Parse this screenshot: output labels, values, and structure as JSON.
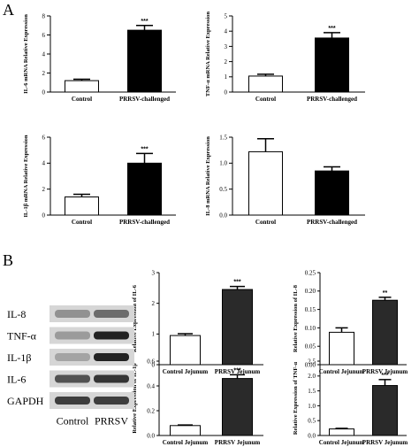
{
  "panels": {
    "A": "A",
    "B": "B"
  },
  "blot": {
    "rows": [
      {
        "label": "IL-8",
        "bands": [
          0.35,
          0.55
        ]
      },
      {
        "label": "TNF-α",
        "bands": [
          0.3,
          0.95
        ]
      },
      {
        "label": "IL-1β",
        "bands": [
          0.25,
          0.95
        ]
      },
      {
        "label": "IL-6",
        "bands": [
          0.7,
          0.85
        ]
      },
      {
        "label": "GAPDH",
        "bands": [
          0.8,
          0.8
        ]
      }
    ],
    "lanes": [
      "Control",
      "PRRSV"
    ]
  },
  "chart_data": [
    {
      "type": "bar",
      "id": "a1",
      "categories": [
        "Control",
        "PRRSV-challenged"
      ],
      "values": [
        1.2,
        6.5
      ],
      "errors": [
        0.15,
        0.5
      ],
      "ylabel": "IL-6 mRNA Relative Expression",
      "ylim": [
        0,
        8
      ],
      "yticks": [
        0,
        2,
        4,
        6,
        8
      ],
      "fills": [
        "#ffffff",
        "#000000"
      ],
      "sig": [
        "",
        "***"
      ]
    },
    {
      "type": "bar",
      "id": "a2",
      "categories": [
        "Control",
        "PRRSV-challenged"
      ],
      "values": [
        1.05,
        3.55
      ],
      "errors": [
        0.12,
        0.35
      ],
      "ylabel": "TNF-α mRNA Relative Expression",
      "ylim": [
        0,
        5
      ],
      "yticks": [
        0,
        1,
        2,
        3,
        4,
        5
      ],
      "fills": [
        "#ffffff",
        "#000000"
      ],
      "sig": [
        "",
        "***"
      ]
    },
    {
      "type": "bar",
      "id": "a3",
      "categories": [
        "Control",
        "PRRSV-challenged"
      ],
      "values": [
        1.4,
        4.0
      ],
      "errors": [
        0.2,
        0.75
      ],
      "ylabel": "IL-1β mRNA Relative Expression",
      "ylim": [
        0,
        6
      ],
      "yticks": [
        0,
        2,
        4,
        6
      ],
      "fills": [
        "#ffffff",
        "#000000"
      ],
      "sig": [
        "",
        "***"
      ]
    },
    {
      "type": "bar",
      "id": "a4",
      "categories": [
        "Control",
        "PRRSV-challenged"
      ],
      "values": [
        1.22,
        0.85
      ],
      "errors": [
        0.25,
        0.08
      ],
      "ylabel": "IL-8 mRNA Relative Expression",
      "ylim": [
        0,
        1.5
      ],
      "yticks": [
        0.0,
        0.5,
        1.0,
        1.5
      ],
      "fills": [
        "#ffffff",
        "#000000"
      ],
      "sig": [
        "",
        ""
      ]
    },
    {
      "type": "bar",
      "id": "b1",
      "categories": [
        "Control Jejunum",
        "PRRSV Jejunum"
      ],
      "values": [
        0.95,
        2.45
      ],
      "errors": [
        0.06,
        0.1
      ],
      "ylabel": "Relative Expression of IL-6",
      "ylim": [
        0,
        3
      ],
      "yticks": [
        0,
        1,
        2,
        3
      ],
      "fills": [
        "#ffffff",
        "#2a2a2a"
      ],
      "sig": [
        "",
        "***"
      ]
    },
    {
      "type": "bar",
      "id": "b2",
      "categories": [
        "Control Jejunum",
        "PRRSV Jejunum"
      ],
      "values": [
        0.088,
        0.175
      ],
      "errors": [
        0.012,
        0.008
      ],
      "ylabel": "Relative Expression of IL-8",
      "ylim": [
        0,
        0.25
      ],
      "yticks": [
        0.0,
        0.05,
        0.1,
        0.15,
        0.2,
        0.25
      ],
      "fills": [
        "#ffffff",
        "#2a2a2a"
      ],
      "sig": [
        "",
        "**"
      ]
    },
    {
      "type": "bar",
      "id": "b3",
      "categories": [
        "Control Jejunum",
        "PRRSV Jejunum"
      ],
      "values": [
        0.08,
        0.46
      ],
      "errors": [
        0.005,
        0.03
      ],
      "ylabel": "Relative Expression of IL-1β",
      "ylim": [
        0,
        0.6
      ],
      "yticks": [
        0.0,
        0.2,
        0.4,
        0.6
      ],
      "fills": [
        "#ffffff",
        "#2a2a2a"
      ],
      "sig": [
        "",
        "***"
      ]
    },
    {
      "type": "bar",
      "id": "b4",
      "categories": [
        "Control Jejunum",
        "PRRSV Jejunum"
      ],
      "values": [
        0.22,
        1.68
      ],
      "errors": [
        0.02,
        0.2
      ],
      "ylabel": "Relative Expression of TNF-α",
      "ylim": [
        0,
        2.5
      ],
      "yticks": [
        0.0,
        0.5,
        1.0,
        1.5,
        2.0,
        2.5
      ],
      "fills": [
        "#ffffff",
        "#2a2a2a"
      ],
      "sig": [
        "",
        "***"
      ]
    }
  ]
}
